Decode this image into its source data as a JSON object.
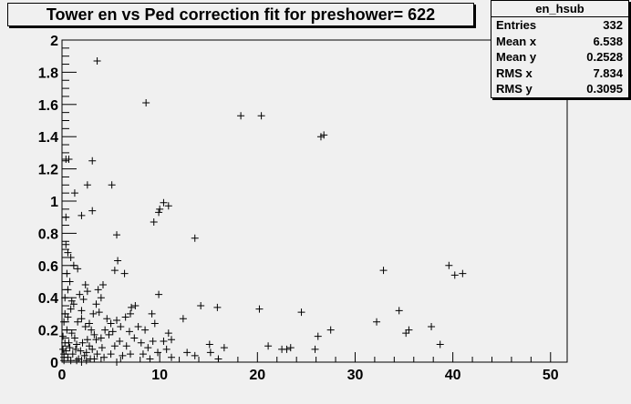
{
  "chart_data": {
    "type": "scatter",
    "title": "Tower en vs Ped correction fit for preshower= 622",
    "xlabel": "",
    "ylabel": "",
    "xlim": [
      0,
      51.7
    ],
    "ylim": [
      0,
      2
    ],
    "xticks": [
      "0",
      "10",
      "20",
      "30",
      "40",
      "50"
    ],
    "yticks": [
      "0",
      "0.2",
      "0.4",
      "0.6",
      "0.8",
      "1",
      "1.2",
      "1.4",
      "1.6",
      "1.8",
      "2"
    ],
    "grid": false,
    "marker": "plus",
    "stats": {
      "name": "en_hsub",
      "rows": [
        {
          "label": "Entries",
          "value": "332"
        },
        {
          "label": "Mean x",
          "value": "6.538"
        },
        {
          "label": "Mean y",
          "value": "0.2528"
        },
        {
          "label": "RMS x",
          "value": "7.834"
        },
        {
          "label": "RMS y",
          "value": "0.3095"
        }
      ]
    },
    "points": [
      [
        3.6,
        1.87
      ],
      [
        8.6,
        1.61
      ],
      [
        18.3,
        1.53
      ],
      [
        20.4,
        1.53
      ],
      [
        26.5,
        1.4
      ],
      [
        26.8,
        1.41
      ],
      [
        0.4,
        1.26
      ],
      [
        0.7,
        1.26
      ],
      [
        3.1,
        1.25
      ],
      [
        2.6,
        1.1
      ],
      [
        5.1,
        1.1
      ],
      [
        1.3,
        1.05
      ],
      [
        10.4,
        0.99
      ],
      [
        10.9,
        0.97
      ],
      [
        10.0,
        0.95
      ],
      [
        9.9,
        0.93
      ],
      [
        3.1,
        0.94
      ],
      [
        2.0,
        0.91
      ],
      [
        0.4,
        0.9
      ],
      [
        9.4,
        0.87
      ],
      [
        13.6,
        0.77
      ],
      [
        5.6,
        0.79
      ],
      [
        0.4,
        0.73
      ],
      [
        0.6,
        0.68
      ],
      [
        0.9,
        0.65
      ],
      [
        5.7,
        0.63
      ],
      [
        5.4,
        0.57
      ],
      [
        6.4,
        0.55
      ],
      [
        1.2,
        0.6
      ],
      [
        0.5,
        0.55
      ],
      [
        1.6,
        0.58
      ],
      [
        0.8,
        0.5
      ],
      [
        32.9,
        0.57
      ],
      [
        39.6,
        0.6
      ],
      [
        40.2,
        0.54
      ],
      [
        41.0,
        0.55
      ],
      [
        9.9,
        0.42
      ],
      [
        14.2,
        0.35
      ],
      [
        15.9,
        0.34
      ],
      [
        20.2,
        0.33
      ],
      [
        24.5,
        0.31
      ],
      [
        34.5,
        0.32
      ],
      [
        32.2,
        0.25
      ],
      [
        35.2,
        0.18
      ],
      [
        35.5,
        0.2
      ],
      [
        37.8,
        0.22
      ],
      [
        38.7,
        0.11
      ],
      [
        27.5,
        0.2
      ],
      [
        26.2,
        0.16
      ],
      [
        21.1,
        0.1
      ],
      [
        22.5,
        0.08
      ],
      [
        23.0,
        0.08
      ],
      [
        23.4,
        0.09
      ],
      [
        25.9,
        0.08
      ],
      [
        16.6,
        0.09
      ],
      [
        15.1,
        0.11
      ],
      [
        15.2,
        0.06
      ],
      [
        12.4,
        0.27
      ],
      [
        10.9,
        0.18
      ],
      [
        11.2,
        0.03
      ],
      [
        12.8,
        0.06
      ],
      [
        13.6,
        0.04
      ],
      [
        16.0,
        0.02
      ],
      [
        9.2,
        0.3
      ],
      [
        7.1,
        0.34
      ],
      [
        7.5,
        0.35
      ],
      [
        4.2,
        0.48
      ],
      [
        3.7,
        0.45
      ],
      [
        4.0,
        0.4
      ],
      [
        2.4,
        0.48
      ],
      [
        2.6,
        0.44
      ],
      [
        1.8,
        0.42
      ],
      [
        2.2,
        0.39
      ],
      [
        3.5,
        0.36
      ],
      [
        1.2,
        0.36
      ],
      [
        0.9,
        0.33
      ],
      [
        0.3,
        0.3
      ],
      [
        0.6,
        0.28
      ],
      [
        0.2,
        0.25
      ],
      [
        1.6,
        0.25
      ],
      [
        2.0,
        0.27
      ],
      [
        3.2,
        0.3
      ],
      [
        3.8,
        0.31
      ],
      [
        4.6,
        0.27
      ],
      [
        5.0,
        0.24
      ],
      [
        5.6,
        0.26
      ],
      [
        6.5,
        0.28
      ],
      [
        7.0,
        0.3
      ],
      [
        6.0,
        0.22
      ],
      [
        3.0,
        0.2
      ],
      [
        2.4,
        0.22
      ],
      [
        1.0,
        0.18
      ],
      [
        0.5,
        0.2
      ],
      [
        0.3,
        0.12
      ],
      [
        1.3,
        0.15
      ],
      [
        2.1,
        0.12
      ],
      [
        2.8,
        0.1
      ],
      [
        3.5,
        0.14
      ],
      [
        4.1,
        0.09
      ],
      [
        4.8,
        0.17
      ],
      [
        5.4,
        0.1
      ],
      [
        5.9,
        0.13
      ],
      [
        6.6,
        0.1
      ],
      [
        7.4,
        0.15
      ],
      [
        8.1,
        0.12
      ],
      [
        8.8,
        0.09
      ],
      [
        9.3,
        0.13
      ],
      [
        9.8,
        0.06
      ],
      [
        10.4,
        0.13
      ],
      [
        7.0,
        0.05
      ],
      [
        6.2,
        0.04
      ],
      [
        5.0,
        0.05
      ],
      [
        4.3,
        0.03
      ],
      [
        3.6,
        0.05
      ],
      [
        2.9,
        0.02
      ],
      [
        2.3,
        0.04
      ],
      [
        1.7,
        0.02
      ],
      [
        1.1,
        0.05
      ],
      [
        0.6,
        0.03
      ],
      [
        0.2,
        0.01
      ],
      [
        0.4,
        0.07
      ],
      [
        0.8,
        0.09
      ],
      [
        1.4,
        0.08
      ],
      [
        1.9,
        0.07
      ],
      [
        2.5,
        0.06
      ],
      [
        3.1,
        0.08
      ],
      [
        0.1,
        0.16
      ],
      [
        0.2,
        0.05
      ],
      [
        0.7,
        0.12
      ],
      [
        1.5,
        0.11
      ],
      [
        2.6,
        0.14
      ],
      [
        4.4,
        0.2
      ],
      [
        5.2,
        0.19
      ],
      [
        7.8,
        0.22
      ],
      [
        8.5,
        0.2
      ],
      [
        9.5,
        0.24
      ],
      [
        11.2,
        0.14
      ],
      [
        10.7,
        0.08
      ],
      [
        0.3,
        0.4
      ],
      [
        0.6,
        0.45
      ],
      [
        1.0,
        0.38
      ],
      [
        2.0,
        0.32
      ],
      [
        2.8,
        0.24
      ],
      [
        3.3,
        0.17
      ],
      [
        4.0,
        0.15
      ],
      [
        6.9,
        0.19
      ],
      [
        8.3,
        0.05
      ],
      [
        0.1,
        0.08
      ],
      [
        0.2,
        0.03
      ],
      [
        0.9,
        0.01
      ],
      [
        1.5,
        0.01
      ],
      [
        2.0,
        0.0
      ],
      [
        2.5,
        0.01
      ],
      [
        3.3,
        0.02
      ],
      [
        5.6,
        0.0
      ],
      [
        9.0,
        0.02
      ]
    ]
  }
}
